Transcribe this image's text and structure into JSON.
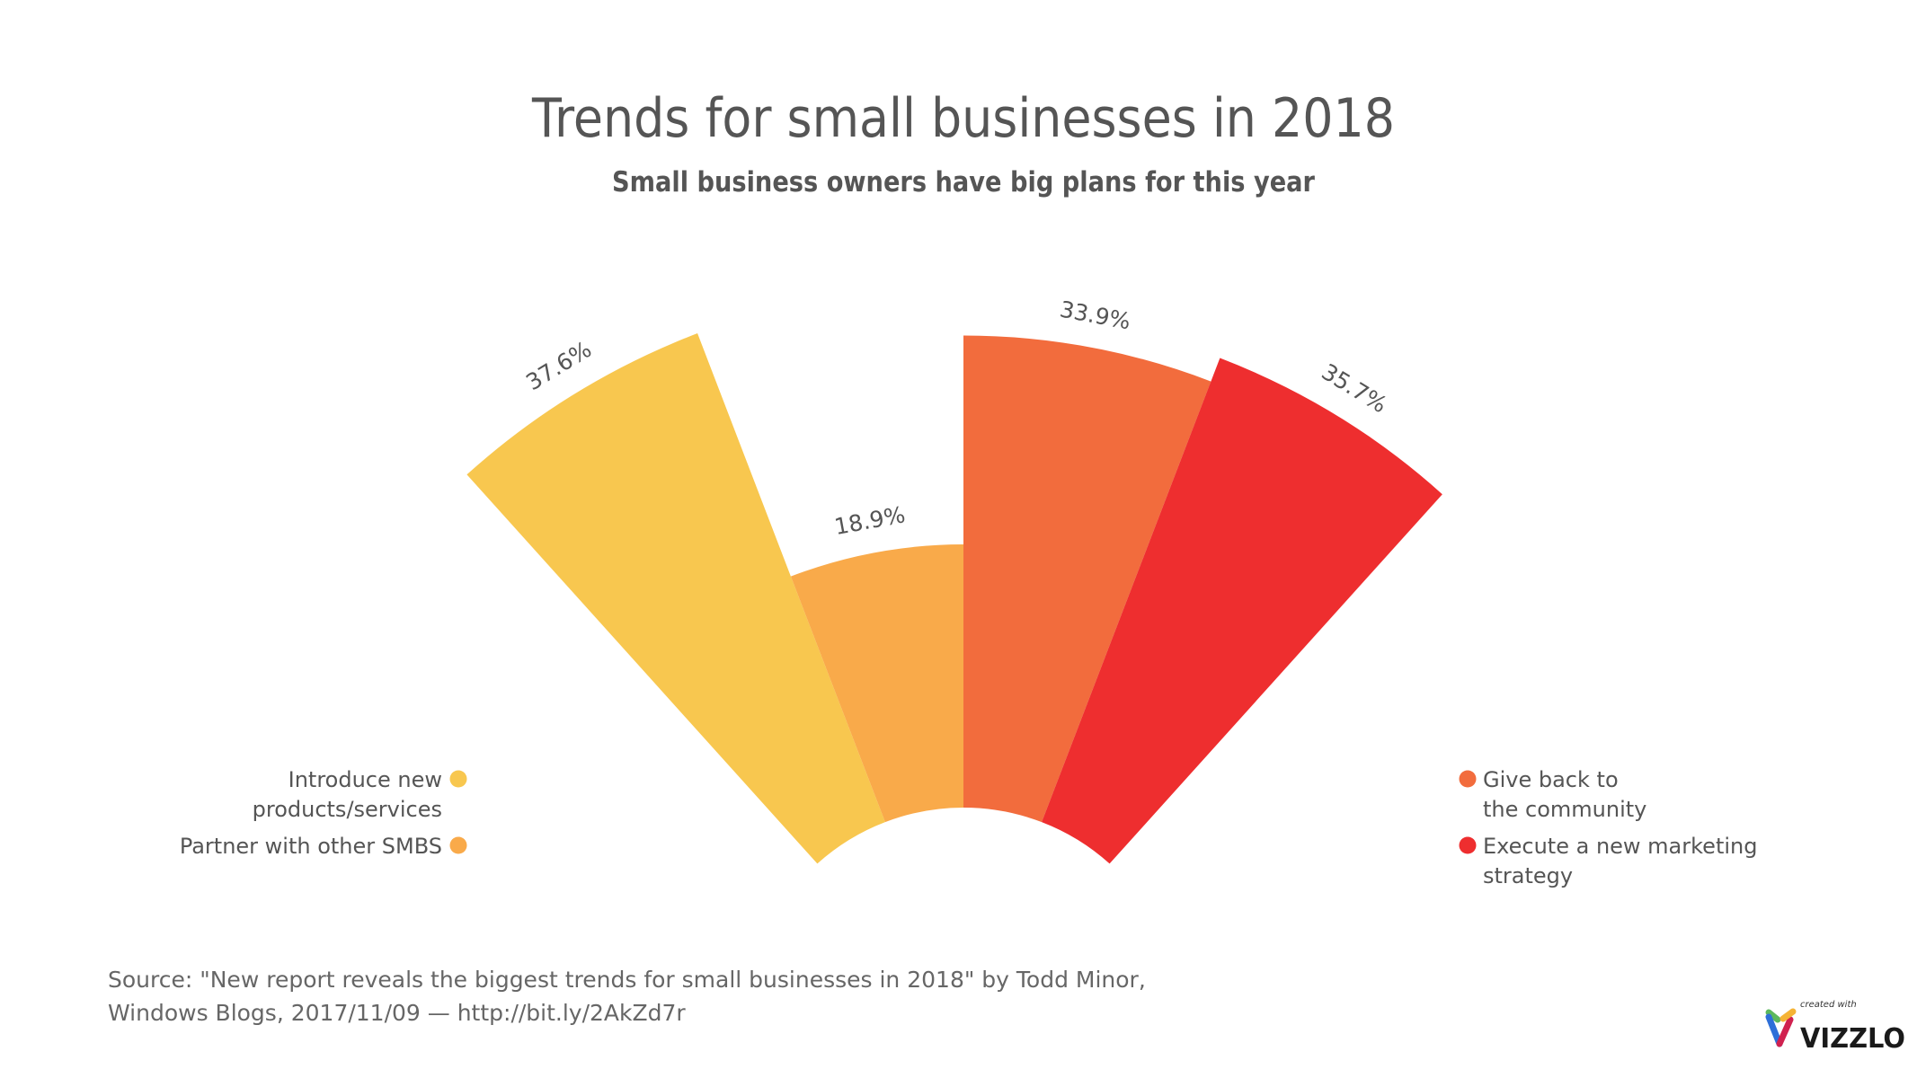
{
  "chart_data": {
    "type": "radial-bar",
    "title": "Trends for small businesses in 2018",
    "subtitle": "Small business owners have big plans for this year",
    "categories": [
      "Introduce new products/services",
      "Partner with other SMBS",
      "Give back to the community",
      "Execute a new marketing strategy"
    ],
    "values": [
      37.6,
      18.9,
      33.9,
      35.7
    ],
    "value_labels": [
      "37.6%",
      "18.9%",
      "33.9%",
      "35.7%"
    ],
    "colors": [
      "#F8C74F",
      "#F9AA4A",
      "#F26C3D",
      "#EE2E2F"
    ],
    "legend": {
      "left": [
        {
          "lines": [
            "Introduce new",
            "products/services"
          ],
          "color": "#F8C74F"
        },
        {
          "lines": [
            "Partner with other SMBS"
          ],
          "color": "#F9AA4A"
        }
      ],
      "right": [
        {
          "lines": [
            "Give back to",
            "the community"
          ],
          "color": "#F26C3D"
        },
        {
          "lines": [
            "Execute a new marketing",
            "strategy"
          ],
          "color": "#EE2E2F"
        }
      ]
    }
  },
  "source": {
    "line1": "Source: \"New report reveals the biggest trends for small businesses in 2018\" by Todd Minor,",
    "line2": "Windows Blogs, 2017/11/09 — http://bit.ly/2AkZd7r"
  },
  "logo": {
    "small": "created with",
    "big": "VIZZLO"
  }
}
